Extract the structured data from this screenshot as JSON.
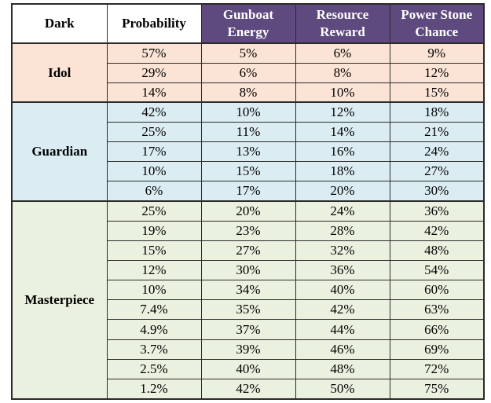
{
  "table": {
    "headers": [
      "Dark",
      "Probability",
      "Gunboat Energy",
      "Resource Reward",
      "Power Stone Chance"
    ],
    "groups": [
      {
        "name": "Idol",
        "rows": [
          [
            "57%",
            "5%",
            "6%",
            "9%"
          ],
          [
            "29%",
            "6%",
            "8%",
            "12%"
          ],
          [
            "14%",
            "8%",
            "10%",
            "15%"
          ]
        ]
      },
      {
        "name": "Guardian",
        "rows": [
          [
            "42%",
            "10%",
            "12%",
            "18%"
          ],
          [
            "25%",
            "11%",
            "14%",
            "21%"
          ],
          [
            "17%",
            "13%",
            "16%",
            "24%"
          ],
          [
            "10%",
            "15%",
            "18%",
            "27%"
          ],
          [
            "6%",
            "17%",
            "20%",
            "30%"
          ]
        ]
      },
      {
        "name": "Masterpiece",
        "rows": [
          [
            "25%",
            "20%",
            "24%",
            "36%"
          ],
          [
            "19%",
            "23%",
            "28%",
            "42%"
          ],
          [
            "15%",
            "27%",
            "32%",
            "48%"
          ],
          [
            "12%",
            "30%",
            "36%",
            "54%"
          ],
          [
            "10%",
            "34%",
            "40%",
            "60%"
          ],
          [
            "7.4%",
            "35%",
            "42%",
            "63%"
          ],
          [
            "4.9%",
            "37%",
            "44%",
            "66%"
          ],
          [
            "3.7%",
            "39%",
            "46%",
            "69%"
          ],
          [
            "2.5%",
            "40%",
            "48%",
            "72%"
          ],
          [
            "1.2%",
            "42%",
            "50%",
            "75%"
          ]
        ]
      }
    ]
  }
}
